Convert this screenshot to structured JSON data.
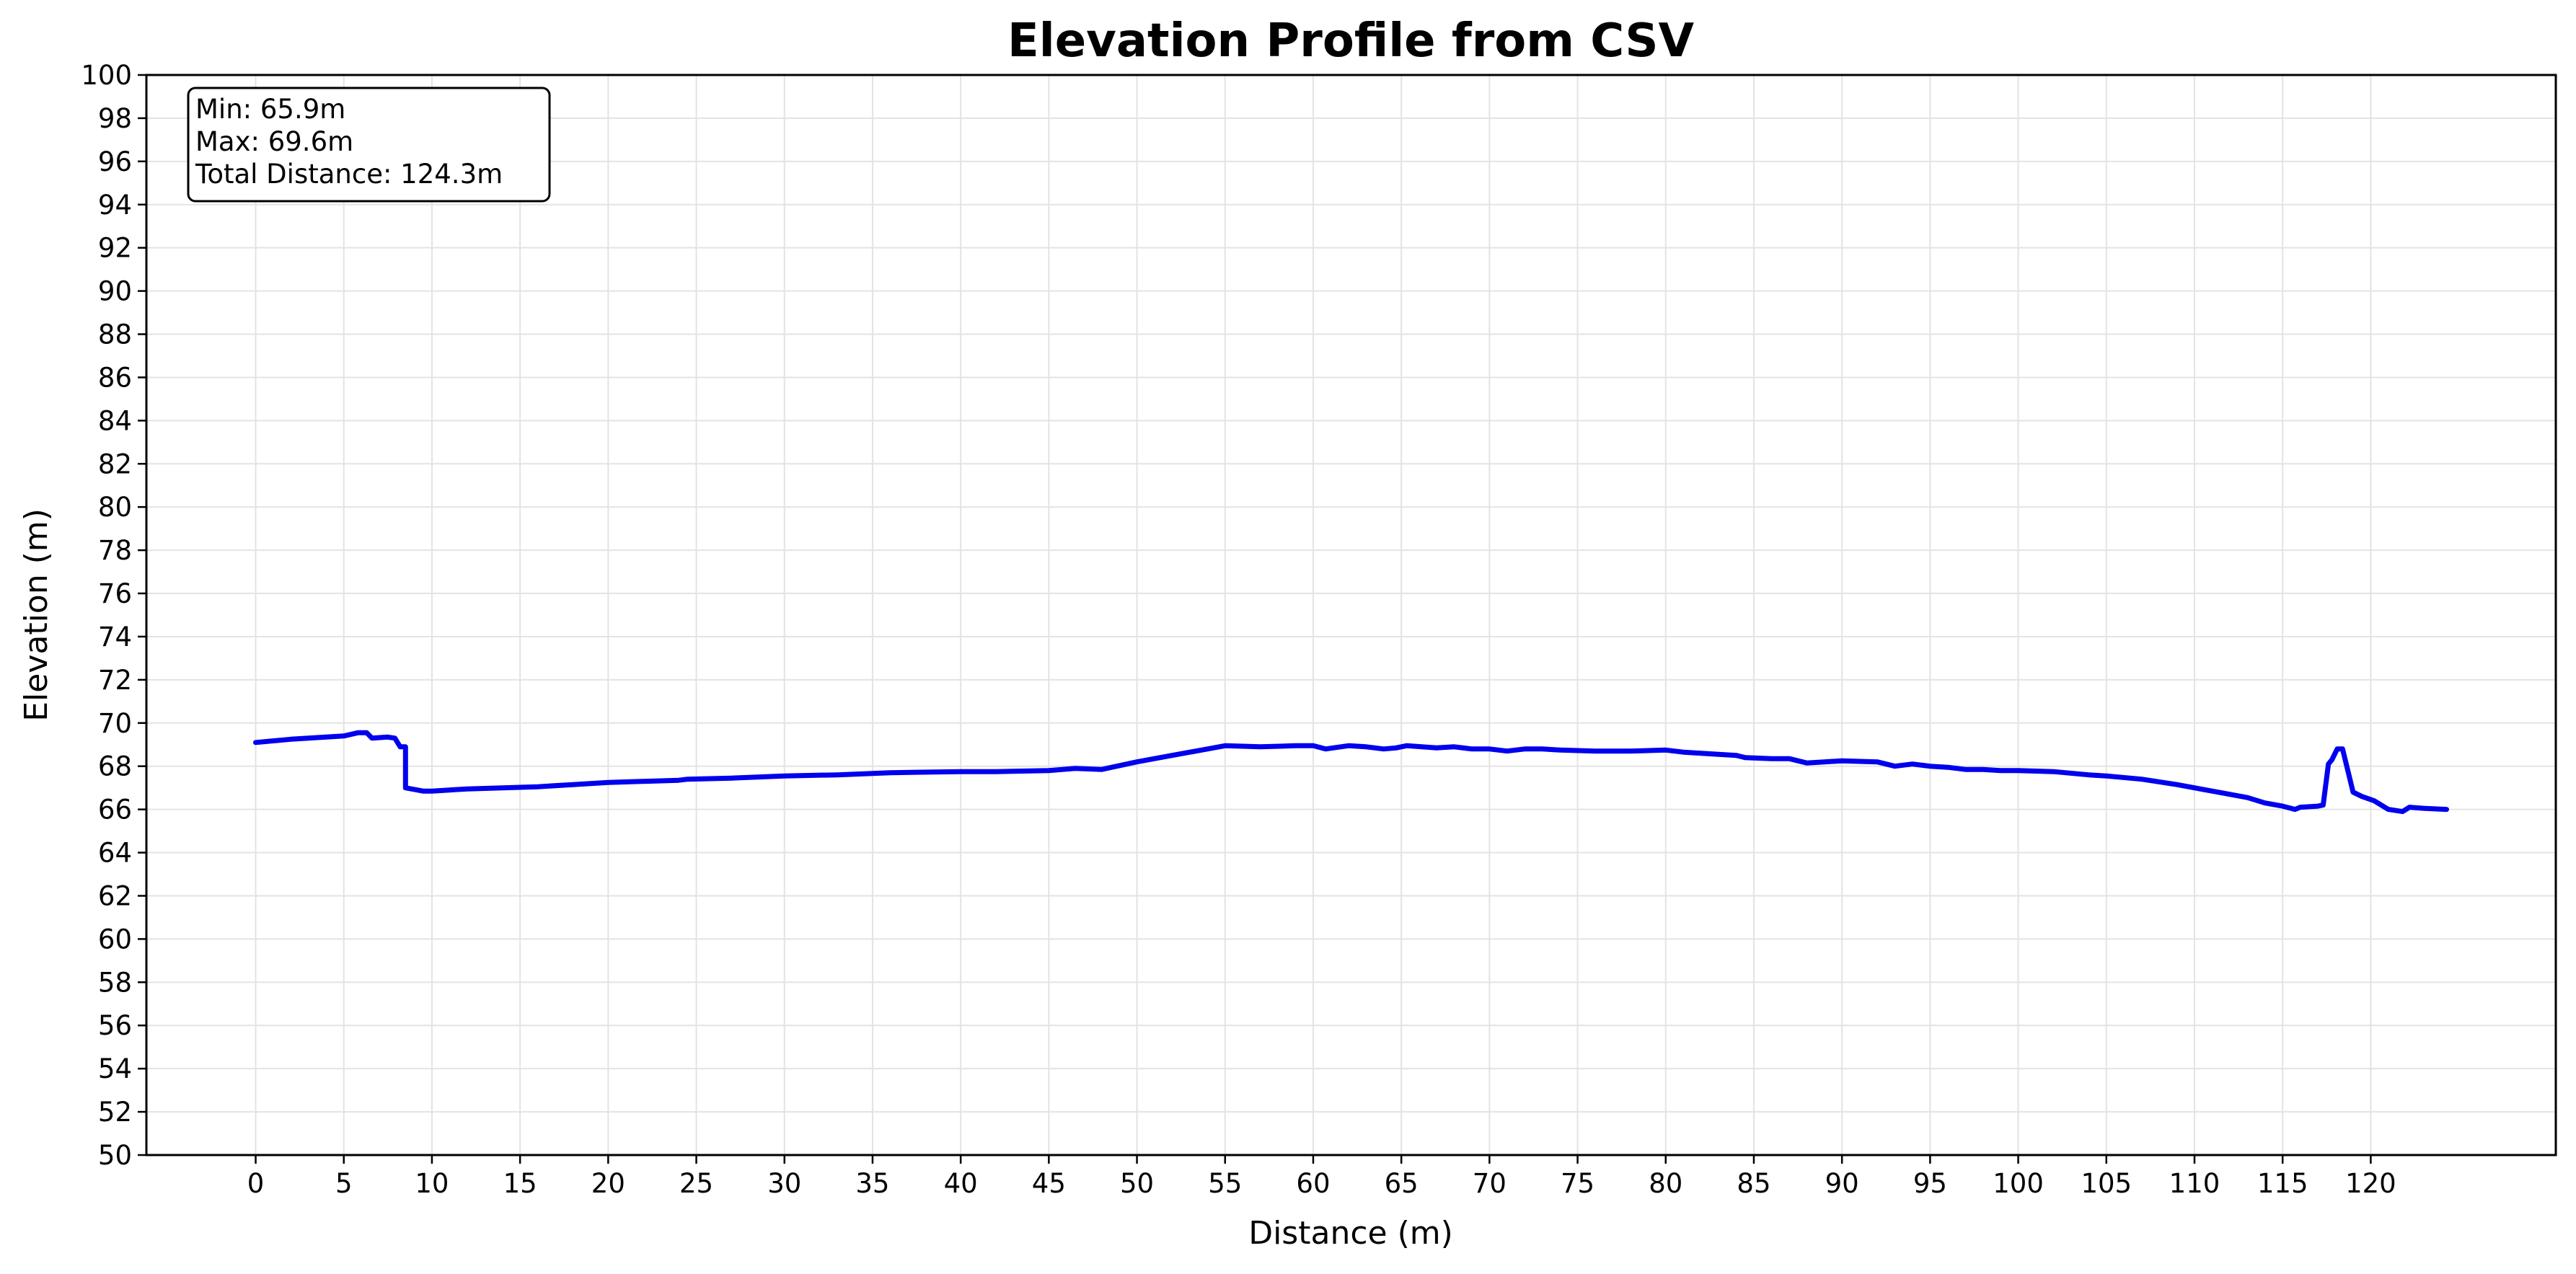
{
  "chart_data": {
    "type": "line",
    "title": "Elevation Profile from CSV",
    "xlabel": "Distance (m)",
    "ylabel": "Elevation (m)",
    "xlim": [
      -6.2,
      130.5
    ],
    "ylim": [
      50,
      100
    ],
    "x_ticks": [
      0,
      5,
      10,
      15,
      20,
      25,
      30,
      35,
      40,
      45,
      50,
      55,
      60,
      65,
      70,
      75,
      80,
      85,
      90,
      95,
      100,
      105,
      110,
      115,
      120
    ],
    "y_ticks": [
      50,
      52,
      54,
      56,
      58,
      60,
      62,
      64,
      66,
      68,
      70,
      72,
      74,
      76,
      78,
      80,
      82,
      84,
      86,
      88,
      90,
      92,
      94,
      96,
      98,
      100
    ],
    "grid": true,
    "line_color": "#0000ee",
    "stats_box": {
      "lines": [
        "Min: 65.9m",
        "Max: 69.6m",
        "Total Distance: 124.3m"
      ],
      "placement": "top-left"
    },
    "series": [
      {
        "x": [
          0,
          2,
          3,
          5,
          5.8,
          6.3,
          6.6,
          7.5,
          7.9,
          8.2,
          8.5,
          8.5,
          9.5,
          10,
          11,
          12,
          14,
          16,
          18,
          20,
          22,
          24,
          24.5,
          27,
          30,
          33,
          36,
          40,
          42,
          45,
          46.5,
          48,
          50,
          52,
          54,
          55,
          57,
          59,
          60,
          60.7,
          62,
          63,
          64,
          64.7,
          65.3,
          67,
          68,
          69,
          70,
          71,
          72,
          73,
          74,
          76,
          78,
          80,
          81,
          82,
          84,
          84.5,
          86,
          87,
          88,
          89,
          90,
          92,
          93,
          94,
          95,
          96,
          97,
          98,
          99,
          100,
          102,
          104,
          105,
          107,
          109,
          111,
          113,
          114,
          115,
          115.7,
          116,
          117,
          117.3,
          117.6,
          117.8,
          118.1,
          118.4,
          118.7,
          119,
          119.5,
          120.2,
          121,
          121.8,
          122.2,
          123,
          124.3
        ],
        "y": [
          69.1,
          69.25,
          69.3,
          69.4,
          69.55,
          69.55,
          69.3,
          69.35,
          69.3,
          68.9,
          68.9,
          67.0,
          66.85,
          66.85,
          66.9,
          66.95,
          67.0,
          67.05,
          67.15,
          67.25,
          67.3,
          67.35,
          67.4,
          67.45,
          67.55,
          67.6,
          67.7,
          67.75,
          67.75,
          67.8,
          67.9,
          67.85,
          68.2,
          68.5,
          68.8,
          68.95,
          68.9,
          68.95,
          68.95,
          68.8,
          68.95,
          68.9,
          68.8,
          68.85,
          68.95,
          68.85,
          68.9,
          68.8,
          68.8,
          68.7,
          68.8,
          68.8,
          68.75,
          68.7,
          68.7,
          68.75,
          68.65,
          68.6,
          68.5,
          68.4,
          68.35,
          68.35,
          68.15,
          68.2,
          68.25,
          68.2,
          68.0,
          68.1,
          68.0,
          67.95,
          67.85,
          67.85,
          67.8,
          67.8,
          67.75,
          67.6,
          67.55,
          67.4,
          67.15,
          66.85,
          66.55,
          66.3,
          66.15,
          66.0,
          66.1,
          66.15,
          66.2,
          68.1,
          68.3,
          68.8,
          68.8,
          67.8,
          66.8,
          66.6,
          66.4,
          66.0,
          65.9,
          66.1,
          66.05,
          66.0
        ]
      }
    ]
  }
}
